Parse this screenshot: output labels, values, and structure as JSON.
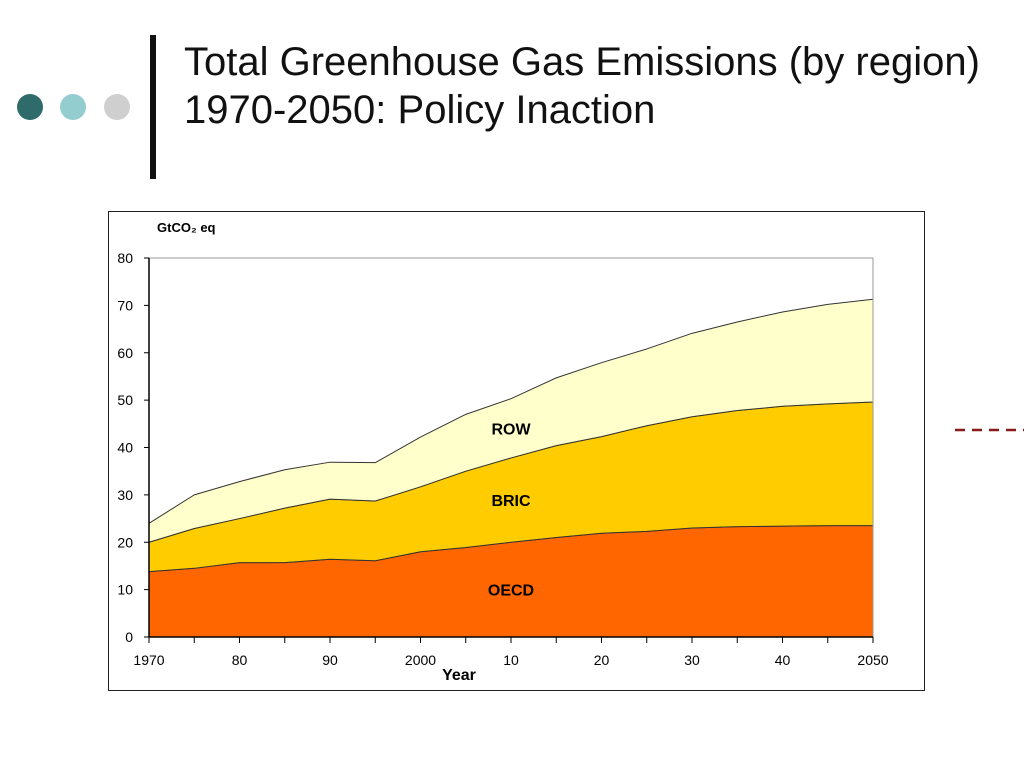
{
  "slide": {
    "title": "Total Greenhouse Gas Emissions (by region) 1970-2050: Policy Inaction",
    "colors": {
      "dot_1": "#2f6b6b",
      "dot_2": "#93cdd0",
      "dot_3": "#cfcfcf",
      "dash": "#8b1a1a"
    }
  },
  "chart_data": {
    "type": "area",
    "stacked": true,
    "unit_label": "GtCO₂ eq",
    "xlabel": "Year",
    "x": [
      1970,
      1975,
      1980,
      1985,
      1990,
      1995,
      2000,
      2005,
      2010,
      2015,
      2020,
      2025,
      2030,
      2035,
      2040,
      2045,
      2050
    ],
    "x_tick_labels": [
      "1970",
      "80",
      "90",
      "2000",
      "10",
      "20",
      "30",
      "40",
      "2050"
    ],
    "x_tick_values": [
      1970,
      1980,
      1990,
      2000,
      2010,
      2020,
      2030,
      2040,
      2050
    ],
    "ylim": [
      0,
      80
    ],
    "y_ticks": [
      0,
      10,
      20,
      30,
      40,
      50,
      60,
      70,
      80
    ],
    "series": [
      {
        "name": "OECD",
        "color": "#ff6600",
        "values": [
          13.8,
          14.5,
          15.7,
          15.7,
          16.4,
          16.1,
          18.0,
          18.9,
          20.0,
          21.0,
          21.9,
          22.3,
          23.0,
          23.3,
          23.4,
          23.5,
          23.5
        ]
      },
      {
        "name": "BRIC",
        "color": "#ffcc00",
        "values": [
          6.2,
          8.4,
          9.3,
          11.5,
          12.7,
          12.6,
          13.7,
          16.1,
          17.8,
          19.4,
          20.4,
          22.3,
          23.5,
          24.5,
          25.3,
          25.7,
          26.1
        ]
      },
      {
        "name": "ROW",
        "color": "#ffffcc",
        "values": [
          4.0,
          7.1,
          7.8,
          8.1,
          7.8,
          8.1,
          10.5,
          12.0,
          12.5,
          14.3,
          15.6,
          16.2,
          17.6,
          18.7,
          19.9,
          21.0,
          21.7
        ]
      }
    ]
  }
}
